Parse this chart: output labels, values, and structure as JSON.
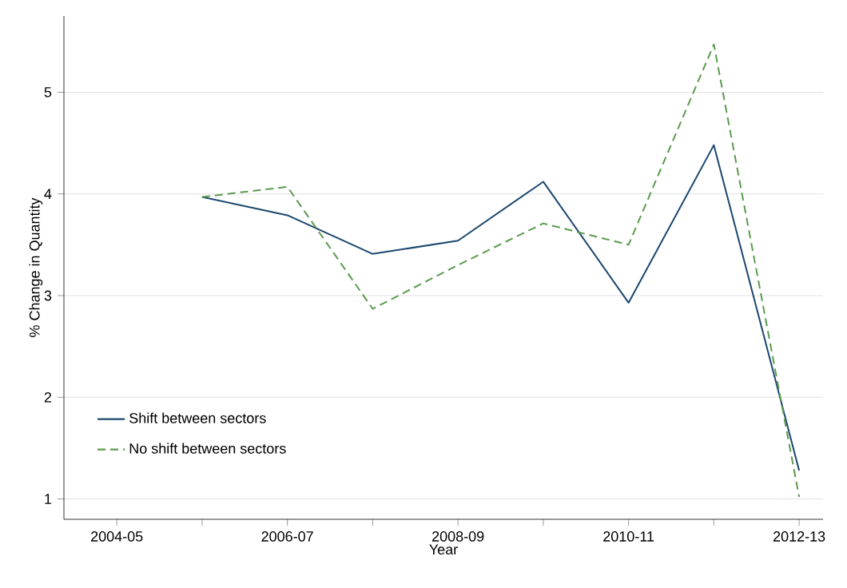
{
  "chart_data": {
    "type": "line",
    "xlabel": "Year",
    "ylabel": "% Change in Quantity",
    "categories": [
      "2004-05",
      null,
      "2006-07",
      null,
      "2008-09",
      null,
      "2010-11",
      null,
      "2012-13"
    ],
    "series": [
      {
        "name": "Shift between sectors",
        "color": "#1a476f",
        "line_style": "solid",
        "values": [
          null,
          3.97,
          3.79,
          3.41,
          3.54,
          4.12,
          2.93,
          4.48,
          1.28
        ]
      },
      {
        "name": "No shift between sectors",
        "color": "#5b9a4e",
        "line_style": "dashed",
        "values": [
          null,
          3.97,
          4.07,
          2.87,
          3.3,
          3.71,
          3.5,
          5.47,
          1.02
        ]
      }
    ],
    "ylim": [
      0.8,
      5.75
    ],
    "yticks": [
      1,
      2,
      3,
      4,
      5
    ],
    "grid": "y",
    "legend": "bottom left",
    "marker": "none"
  }
}
